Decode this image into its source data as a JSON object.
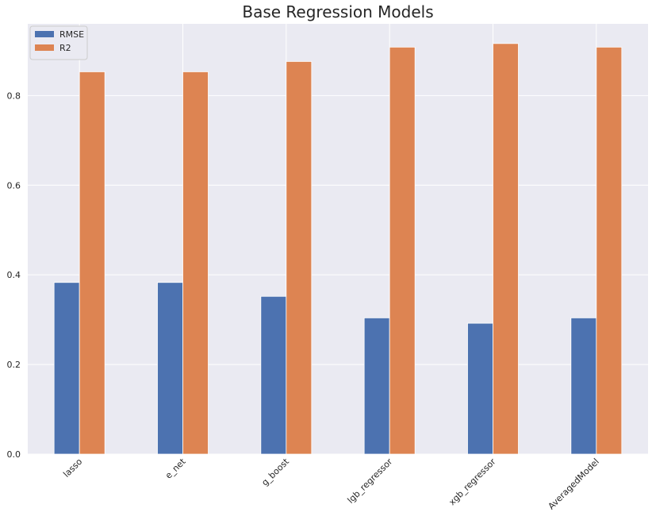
{
  "chart_data": {
    "type": "bar",
    "title": "Base Regression Models",
    "xlabel": "",
    "ylabel": "",
    "categories": [
      "lasso",
      "e_net",
      "g_boost",
      "lgb_regressor",
      "xgb_regressor",
      "AveragedModel"
    ],
    "series": [
      {
        "name": "RMSE",
        "values": [
          0.383,
          0.383,
          0.352,
          0.304,
          0.292,
          0.304
        ],
        "color": "#4c72b0"
      },
      {
        "name": "R2",
        "values": [
          0.853,
          0.853,
          0.876,
          0.908,
          0.916,
          0.908
        ],
        "color": "#dd8452"
      }
    ],
    "ylim": [
      0,
      0.96
    ],
    "yticks": [
      0.0,
      0.2,
      0.4,
      0.6,
      0.8
    ],
    "ytick_labels": [
      "0.0",
      "0.2",
      "0.4",
      "0.6",
      "0.8"
    ],
    "grid": true,
    "legend_position": "top-left",
    "colors": {
      "plot_background": "#eaeaf2",
      "grid": "#ffffff"
    }
  }
}
